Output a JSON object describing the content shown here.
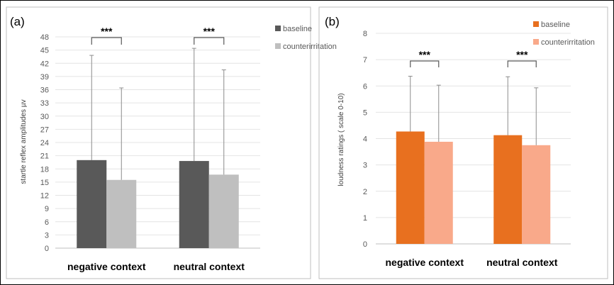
{
  "chart_data": [
    {
      "panel_label": "(a)",
      "type": "bar",
      "ylabel": "startle reflex amplitudes µv",
      "ylim": [
        0,
        48
      ],
      "yticks": [
        "0",
        "3",
        "6",
        "9",
        "12",
        "15",
        "18",
        "21",
        "24",
        "27",
        "30",
        "33",
        "36",
        "39",
        "42",
        "45",
        "48"
      ],
      "categories": [
        "negative context",
        "neutral context"
      ],
      "series": [
        {
          "name": "baseline",
          "color": "#595959",
          "values": [
            20.0,
            19.8
          ],
          "err_upper": [
            43.8,
            45.4
          ]
        },
        {
          "name": "counterirritation",
          "color": "#bfbfbf",
          "values": [
            15.5,
            16.7
          ],
          "err_upper": [
            36.4,
            40.5
          ]
        }
      ],
      "significance": [
        "***",
        "***"
      ],
      "grid": true,
      "legend": "top-right"
    },
    {
      "panel_label": "(b)",
      "type": "bar",
      "ylabel": "loudness ratings ( scale 0-10)",
      "ylim": [
        0,
        8
      ],
      "yticks": [
        "0",
        "1",
        "2",
        "3",
        "4",
        "5",
        "6",
        "7",
        "8"
      ],
      "categories": [
        "negative context",
        "neutral context"
      ],
      "series": [
        {
          "name": "baseline",
          "color": "#e8701f",
          "values": [
            4.27,
            4.13
          ],
          "err_upper": [
            6.37,
            6.35
          ]
        },
        {
          "name": "counterirritation",
          "color": "#f9a98a",
          "values": [
            3.88,
            3.75
          ],
          "err_upper": [
            6.03,
            5.93
          ]
        }
      ],
      "significance": [
        "***",
        "***"
      ],
      "grid": true,
      "legend": "top-right"
    }
  ]
}
